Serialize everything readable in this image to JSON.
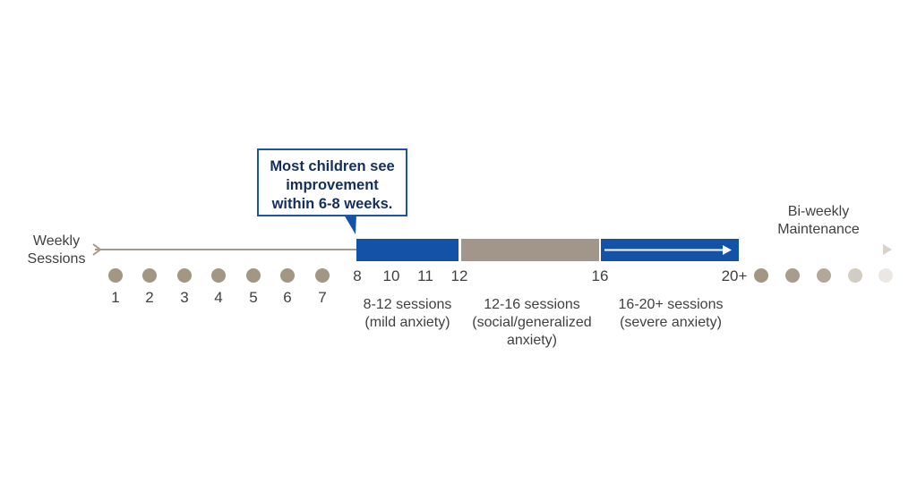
{
  "colors": {
    "axis": "#a89a8a",
    "dot": "#a29684",
    "mild_block": "#1452a8",
    "social_block": "#a2968a",
    "severe_block": "#1452a8",
    "callout_border": "#1b56a4",
    "callout_text": "#142f5e"
  },
  "callout": {
    "line1": "Most children see",
    "line2": "improvement",
    "line3": "within 6-8 weeks."
  },
  "left_label": {
    "line1": "Weekly",
    "line2": "Sessions"
  },
  "right_label": {
    "line1": "Bi-weekly",
    "line2": "Maintenance"
  },
  "weekly_numbers": [
    "1",
    "2",
    "3",
    "4",
    "5",
    "6",
    "7"
  ],
  "block_numbers": [
    "8",
    "10",
    "11",
    "12",
    "16",
    "20+"
  ],
  "phases": [
    {
      "line1": "8-12 sessions",
      "line2": "(mild anxiety)",
      "line3": ""
    },
    {
      "line1": "12-16 sessions",
      "line2": "(social/generalized",
      "line3": "anxiety)"
    },
    {
      "line1": "16-20+ sessions",
      "line2": "(severe anxiety)",
      "line3": ""
    }
  ]
}
